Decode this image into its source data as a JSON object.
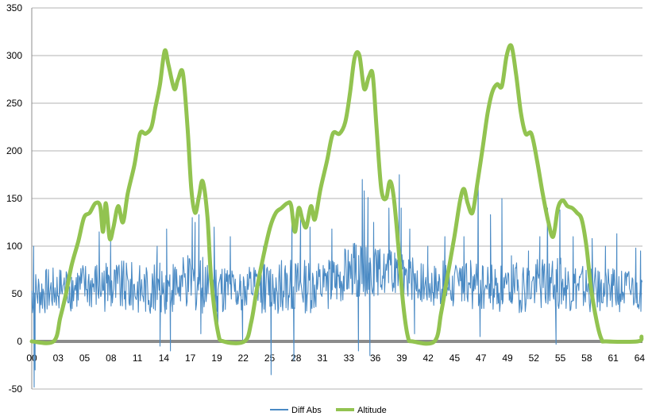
{
  "chart_data": {
    "type": "line",
    "title": "",
    "xlabel": "",
    "ylabel": "",
    "ylim": [
      -50,
      350
    ],
    "yticks": [
      -50,
      0,
      50,
      100,
      150,
      200,
      250,
      300,
      350
    ],
    "x_tick_labels": [
      "00",
      "03",
      "05",
      "08",
      "11",
      "14",
      "17",
      "19",
      "22",
      "25",
      "28",
      "31",
      "33",
      "36",
      "39",
      "42",
      "45",
      "47",
      "49",
      "52",
      "55",
      "58",
      "61",
      "64"
    ],
    "x_range": [
      0,
      64.3
    ],
    "grid": "horizontal",
    "legend": "bottom",
    "series": [
      {
        "name": "Diff Abs",
        "color": "#4a8ac4",
        "note_style": "noisy",
        "segments": [
          [
            0.0,
            0.3,
            50,
            20,
            0
          ],
          [
            3.0,
            20,
            55,
            18,
            1
          ],
          [
            8.0,
            20,
            58,
            22,
            2
          ],
          [
            13.0,
            20,
            55,
            20,
            3
          ],
          [
            18.0,
            20,
            62,
            25,
            4
          ],
          [
            22.0,
            20,
            52,
            18,
            5
          ],
          [
            26.0,
            20,
            58,
            22,
            6
          ],
          [
            31.0,
            20,
            58,
            22,
            7
          ],
          [
            34.0,
            20,
            75,
            22,
            8
          ],
          [
            38.0,
            20,
            72,
            18,
            9
          ],
          [
            41.0,
            20,
            62,
            18,
            10
          ],
          [
            45.0,
            20,
            58,
            20,
            11
          ],
          [
            50.0,
            20,
            55,
            20,
            12
          ],
          [
            55.0,
            20,
            62,
            22,
            13
          ],
          [
            60.0,
            20,
            52,
            18,
            14
          ],
          [
            64.3,
            20,
            55,
            18,
            15
          ]
        ],
        "spikes": [
          [
            0.2,
            100
          ],
          [
            0.25,
            -48
          ],
          [
            0.35,
            -30
          ],
          [
            7.1,
            115
          ],
          [
            8.3,
            105
          ],
          [
            13.2,
            100
          ],
          [
            13.5,
            -5
          ],
          [
            14.2,
            118
          ],
          [
            14.6,
            -10
          ],
          [
            16.9,
            130
          ],
          [
            17.2,
            125
          ],
          [
            17.6,
            133
          ],
          [
            17.8,
            8
          ],
          [
            19.2,
            120
          ],
          [
            19.6,
            5
          ],
          [
            20.9,
            110
          ],
          [
            22.2,
            2
          ],
          [
            24.4,
            100
          ],
          [
            25.2,
            -35
          ],
          [
            26.3,
            85
          ],
          [
            27.4,
            142
          ],
          [
            27.6,
            -20
          ],
          [
            28.3,
            133
          ],
          [
            29.3,
            120
          ],
          [
            31.6,
            118
          ],
          [
            34.0,
            103
          ],
          [
            34.4,
            -10
          ],
          [
            34.8,
            170
          ],
          [
            35.0,
            158
          ],
          [
            35.4,
            151
          ],
          [
            35.6,
            -15
          ],
          [
            36.0,
            125
          ],
          [
            37.6,
            140
          ],
          [
            38.7,
            175
          ],
          [
            38.9,
            140
          ],
          [
            39.8,
            118
          ],
          [
            40.3,
            8
          ],
          [
            41.7,
            100
          ],
          [
            43.5,
            110
          ],
          [
            45.5,
            110
          ],
          [
            46.2,
            85
          ],
          [
            47.0,
            173
          ],
          [
            47.2,
            5
          ],
          [
            48.3,
            133
          ],
          [
            49.5,
            150
          ],
          [
            50.5,
            90
          ],
          [
            52.3,
            95
          ],
          [
            53.5,
            110
          ],
          [
            54.3,
            140
          ],
          [
            55.2,
            -3
          ],
          [
            55.6,
            138
          ],
          [
            57.0,
            110
          ],
          [
            59.0,
            108
          ],
          [
            60.4,
            100
          ],
          [
            61.6,
            113
          ],
          [
            63.6,
            98
          ],
          [
            64.1,
            95
          ]
        ]
      },
      {
        "name": "Altitude",
        "color": "#92c350",
        "points": [
          [
            0.0,
            0
          ],
          [
            2.3,
            0
          ],
          [
            3.0,
            25
          ],
          [
            3.6,
            50
          ],
          [
            4.2,
            80
          ],
          [
            4.9,
            105
          ],
          [
            5.5,
            130
          ],
          [
            6.1,
            135
          ],
          [
            6.7,
            145
          ],
          [
            7.2,
            142
          ],
          [
            7.5,
            115
          ],
          [
            7.8,
            145
          ],
          [
            8.2,
            108
          ],
          [
            8.6,
            120
          ],
          [
            9.1,
            142
          ],
          [
            9.6,
            125
          ],
          [
            10.1,
            155
          ],
          [
            10.8,
            185
          ],
          [
            11.4,
            218
          ],
          [
            12.0,
            218
          ],
          [
            12.6,
            225
          ],
          [
            13.0,
            245
          ],
          [
            13.5,
            270
          ],
          [
            14.0,
            305
          ],
          [
            14.4,
            290
          ],
          [
            15.0,
            265
          ],
          [
            15.4,
            275
          ],
          [
            15.9,
            282
          ],
          [
            16.4,
            225
          ],
          [
            16.8,
            160
          ],
          [
            17.2,
            135
          ],
          [
            17.6,
            152
          ],
          [
            18.0,
            168
          ],
          [
            18.5,
            130
          ],
          [
            18.9,
            65
          ],
          [
            19.6,
            10
          ],
          [
            20.2,
            0
          ],
          [
            22.4,
            0
          ],
          [
            23.1,
            20
          ],
          [
            23.7,
            55
          ],
          [
            24.4,
            90
          ],
          [
            25.1,
            120
          ],
          [
            25.7,
            135
          ],
          [
            26.3,
            140
          ],
          [
            26.9,
            145
          ],
          [
            27.3,
            143
          ],
          [
            27.7,
            115
          ],
          [
            28.1,
            140
          ],
          [
            28.5,
            128
          ],
          [
            28.9,
            120
          ],
          [
            29.4,
            142
          ],
          [
            29.8,
            128
          ],
          [
            30.4,
            160
          ],
          [
            31.1,
            190
          ],
          [
            31.7,
            218
          ],
          [
            32.4,
            218
          ],
          [
            33.0,
            230
          ],
          [
            33.5,
            260
          ],
          [
            34.0,
            298
          ],
          [
            34.5,
            300
          ],
          [
            35.0,
            265
          ],
          [
            35.5,
            278
          ],
          [
            35.9,
            280
          ],
          [
            36.3,
            225
          ],
          [
            36.8,
            160
          ],
          [
            37.3,
            150
          ],
          [
            37.7,
            168
          ],
          [
            38.1,
            152
          ],
          [
            38.6,
            100
          ],
          [
            39.1,
            40
          ],
          [
            39.6,
            5
          ],
          [
            40.1,
            0
          ],
          [
            42.4,
            0
          ],
          [
            43.1,
            30
          ],
          [
            43.8,
            70
          ],
          [
            44.5,
            110
          ],
          [
            45.1,
            148
          ],
          [
            45.5,
            160
          ],
          [
            45.9,
            145
          ],
          [
            46.4,
            135
          ],
          [
            46.9,
            165
          ],
          [
            47.5,
            205
          ],
          [
            48.0,
            240
          ],
          [
            48.5,
            262
          ],
          [
            49.0,
            270
          ],
          [
            49.5,
            268
          ],
          [
            50.0,
            300
          ],
          [
            50.5,
            310
          ],
          [
            51.0,
            280
          ],
          [
            51.5,
            240
          ],
          [
            52.0,
            218
          ],
          [
            52.6,
            218
          ],
          [
            53.2,
            190
          ],
          [
            53.8,
            155
          ],
          [
            54.4,
            125
          ],
          [
            54.9,
            110
          ],
          [
            55.4,
            140
          ],
          [
            55.9,
            148
          ],
          [
            56.4,
            142
          ],
          [
            56.9,
            140
          ],
          [
            57.4,
            135
          ],
          [
            57.9,
            128
          ],
          [
            58.4,
            100
          ],
          [
            58.9,
            55
          ],
          [
            59.5,
            20
          ],
          [
            60.0,
            2
          ],
          [
            60.5,
            0
          ],
          [
            63.8,
            0
          ],
          [
            64.2,
            5
          ]
        ]
      }
    ]
  }
}
